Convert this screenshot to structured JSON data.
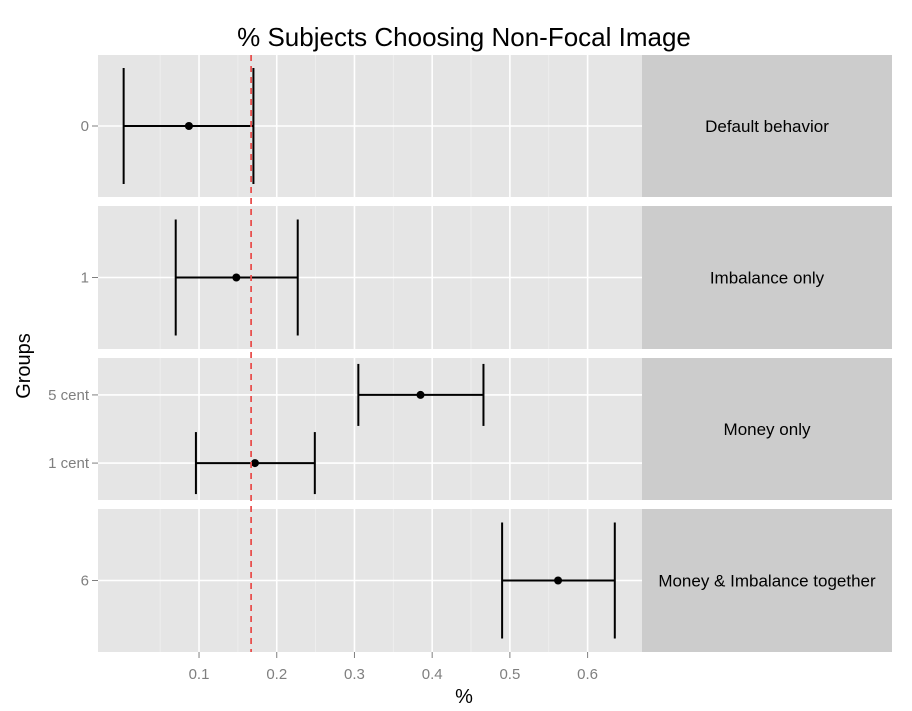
{
  "chart_data": {
    "type": "scatter",
    "title": "% Subjects Choosing Non-Focal Image",
    "xlabel": "%",
    "ylabel": "Groups",
    "x_ticks": [
      0.1,
      0.2,
      0.3,
      0.4,
      0.5,
      0.6
    ],
    "x_tick_labels": [
      "0.1",
      "0.2",
      "0.3",
      "0.4",
      "0.5",
      "0.6"
    ],
    "xlim": [
      -0.03,
      0.67
    ],
    "reference_line": {
      "x": 0.167,
      "style": "dashed",
      "color": "#e8514f"
    },
    "grid": true,
    "colors": {
      "panel_bg": "#e5e5e5",
      "strip_bg": "#cccccc",
      "grid": "#ffffff",
      "marks": "#000000",
      "tick_text": "#7f7f7f"
    },
    "facets": [
      {
        "strip_label": "Default behavior",
        "rows": [
          {
            "label": "0",
            "estimate": 0.087,
            "lower": 0.003,
            "upper": 0.17
          }
        ]
      },
      {
        "strip_label": "Imbalance only",
        "rows": [
          {
            "label": "1",
            "estimate": 0.148,
            "lower": 0.07,
            "upper": 0.227
          }
        ]
      },
      {
        "strip_label": "Money only",
        "rows": [
          {
            "label": "5 cent",
            "estimate": 0.385,
            "lower": 0.305,
            "upper": 0.466
          },
          {
            "label": "1 cent",
            "estimate": 0.172,
            "lower": 0.096,
            "upper": 0.249
          }
        ]
      },
      {
        "strip_label": "Money & Imbalance together",
        "rows": [
          {
            "label": "6",
            "estimate": 0.562,
            "lower": 0.49,
            "upper": 0.635
          }
        ]
      }
    ]
  }
}
